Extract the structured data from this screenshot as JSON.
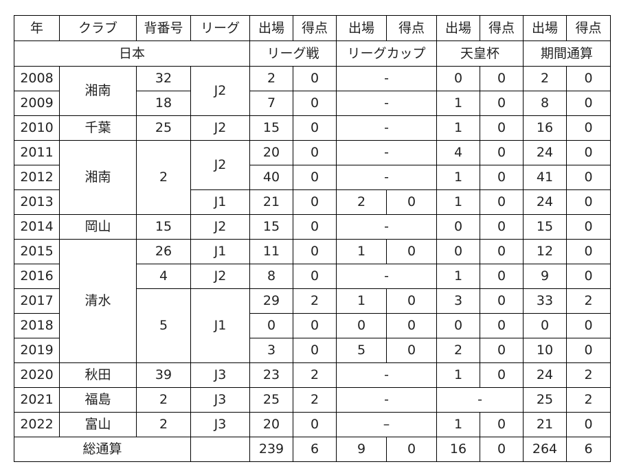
{
  "columns": [
    "年",
    "クラブ",
    "背番号",
    "リーグ",
    "出場",
    "得点",
    "出場",
    "得点",
    "出場",
    "得点",
    "出場",
    "得点"
  ],
  "group_header": {
    "country": "日本",
    "league": "リーグ戦",
    "league_cup": "リーグカップ",
    "emperors_cup": "天皇杯",
    "period_total": "期間通算"
  },
  "rows": [
    {
      "year": "2008",
      "club": "湘南",
      "number": "32",
      "league": "J2",
      "lg_apps": "2",
      "lg_goals": "0",
      "cup": "-",
      "ec_apps": "0",
      "ec_goals": "0",
      "tot_apps": "2",
      "tot_goals": "0"
    },
    {
      "year": "2009",
      "number": "18",
      "lg_apps": "7",
      "lg_goals": "0",
      "cup": "-",
      "ec_apps": "1",
      "ec_goals": "0",
      "tot_apps": "8",
      "tot_goals": "0"
    },
    {
      "year": "2010",
      "club": "千葉",
      "number": "25",
      "league": "J2",
      "lg_apps": "15",
      "lg_goals": "0",
      "cup": "-",
      "ec_apps": "1",
      "ec_goals": "0",
      "tot_apps": "16",
      "tot_goals": "0"
    },
    {
      "year": "2011",
      "club": "湘南",
      "number": "2",
      "league": "J2",
      "lg_apps": "20",
      "lg_goals": "0",
      "cup": "-",
      "ec_apps": "4",
      "ec_goals": "0",
      "tot_apps": "24",
      "tot_goals": "0"
    },
    {
      "year": "2012",
      "lg_apps": "40",
      "lg_goals": "0",
      "cup": "-",
      "ec_apps": "1",
      "ec_goals": "0",
      "tot_apps": "41",
      "tot_goals": "0"
    },
    {
      "year": "2013",
      "league": "J1",
      "lg_apps": "21",
      "lg_goals": "0",
      "cup_apps": "2",
      "cup_goals": "0",
      "ec_apps": "1",
      "ec_goals": "0",
      "tot_apps": "24",
      "tot_goals": "0"
    },
    {
      "year": "2014",
      "club": "岡山",
      "number": "15",
      "league": "J2",
      "lg_apps": "15",
      "lg_goals": "0",
      "cup": "-",
      "ec_apps": "0",
      "ec_goals": "0",
      "tot_apps": "15",
      "tot_goals": "0"
    },
    {
      "year": "2015",
      "club": "清水",
      "number": "26",
      "league": "J1",
      "lg_apps": "11",
      "lg_goals": "0",
      "cup_apps": "1",
      "cup_goals": "0",
      "ec_apps": "0",
      "ec_goals": "0",
      "tot_apps": "12",
      "tot_goals": "0"
    },
    {
      "year": "2016",
      "number": "4",
      "league": "J2",
      "lg_apps": "8",
      "lg_goals": "0",
      "cup": "-",
      "ec_apps": "1",
      "ec_goals": "0",
      "tot_apps": "9",
      "tot_goals": "0"
    },
    {
      "year": "2017",
      "number": "5",
      "league": "J1",
      "lg_apps": "29",
      "lg_goals": "2",
      "cup_apps": "1",
      "cup_goals": "0",
      "ec_apps": "3",
      "ec_goals": "0",
      "tot_apps": "33",
      "tot_goals": "2"
    },
    {
      "year": "2018",
      "lg_apps": "0",
      "lg_goals": "0",
      "cup_apps": "0",
      "cup_goals": "0",
      "ec_apps": "0",
      "ec_goals": "0",
      "tot_apps": "0",
      "tot_goals": "0"
    },
    {
      "year": "2019",
      "lg_apps": "3",
      "lg_goals": "0",
      "cup_apps": "5",
      "cup_goals": "0",
      "ec_apps": "2",
      "ec_goals": "0",
      "tot_apps": "10",
      "tot_goals": "0"
    },
    {
      "year": "2020",
      "club": "秋田",
      "number": "39",
      "league": "J3",
      "lg_apps": "23",
      "lg_goals": "2",
      "cup": "-",
      "ec_apps": "1",
      "ec_goals": "0",
      "tot_apps": "24",
      "tot_goals": "2"
    },
    {
      "year": "2021",
      "club": "福島",
      "number": "2",
      "league": "J3",
      "lg_apps": "25",
      "lg_goals": "2",
      "cup": "-",
      "ec": "-",
      "tot_apps": "25",
      "tot_goals": "2"
    },
    {
      "year": "2022",
      "club": "富山",
      "number": "2",
      "league": "J3",
      "lg_apps": "20",
      "lg_goals": "0",
      "cup": "–",
      "ec_apps": "1",
      "ec_goals": "0",
      "tot_apps": "21",
      "tot_goals": "0"
    }
  ],
  "total": {
    "label": "総通算",
    "lg_apps": "239",
    "lg_goals": "6",
    "cup_apps": "9",
    "cup_goals": "0",
    "ec_apps": "16",
    "ec_goals": "0",
    "tot_apps": "264",
    "tot_goals": "6"
  }
}
